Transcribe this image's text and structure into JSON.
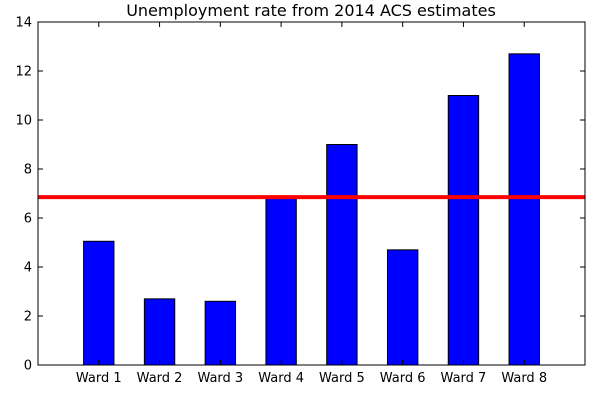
{
  "chart_data": {
    "type": "bar",
    "title": "Unemployment rate from 2014 ACS estimates",
    "xlabel": "",
    "ylabel": "",
    "categories": [
      "Ward 1",
      "Ward 2",
      "Ward 3",
      "Ward 4",
      "Ward 5",
      "Ward 6",
      "Ward 7",
      "Ward 8"
    ],
    "values": [
      5.05,
      2.7,
      2.6,
      6.8,
      9.0,
      4.7,
      11.0,
      12.7
    ],
    "ylim": [
      0,
      14
    ],
    "yticks": [
      0,
      2,
      4,
      6,
      8,
      10,
      12,
      14
    ],
    "ytick_labels": [
      "0",
      "2",
      "4",
      "6",
      "8",
      "10",
      "12",
      "14"
    ],
    "reference_line": {
      "value": 6.85,
      "color": "#ff0000"
    },
    "bar_color": "#0000ff",
    "grid": false,
    "legend": "none"
  }
}
